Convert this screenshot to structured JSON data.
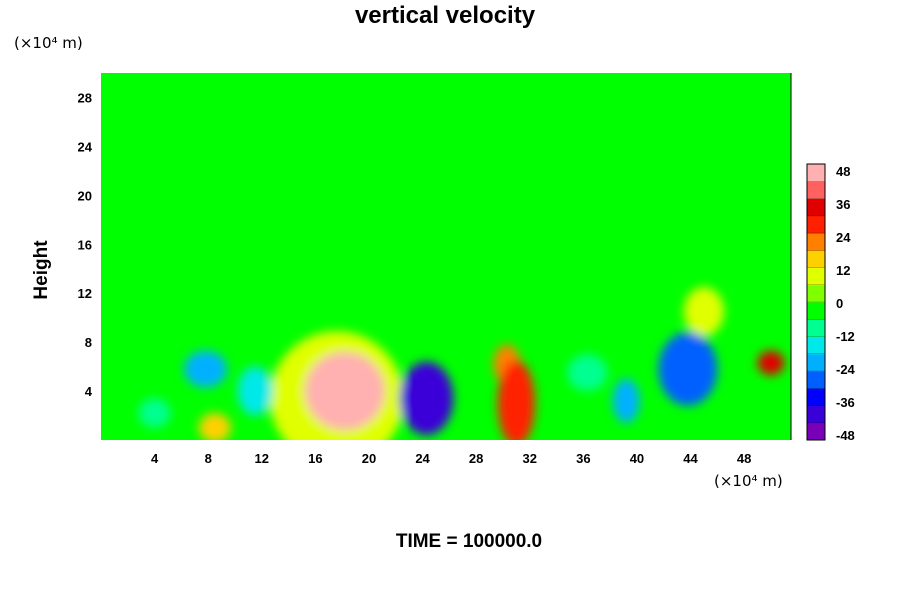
{
  "chart_data": {
    "type": "heatmap",
    "title": "vertical velocity",
    "ylabel": "Height",
    "x_unit_label": "(×10⁴ m)",
    "y_unit_label": "(×10⁴ m)",
    "footer": "TIME = 100000.0",
    "xlim": [
      0,
      51.5
    ],
    "ylim": [
      0,
      30
    ],
    "x_ticks": [
      "4",
      "8",
      "12",
      "16",
      "20",
      "24",
      "28",
      "32",
      "36",
      "40",
      "44",
      "48"
    ],
    "y_ticks": [
      "4",
      "8",
      "12",
      "16",
      "20",
      "24",
      "28"
    ],
    "colorbar": {
      "range": [
        -48,
        48
      ],
      "tick_labels": [
        "48",
        "36",
        "24",
        "12",
        "0",
        "-12",
        "-24",
        "-36",
        "-48"
      ],
      "colors": [
        "#7a00b8",
        "#3a00d8",
        "#0000ff",
        "#0060ff",
        "#00b0ff",
        "#00e8e8",
        "#00ff90",
        "#00ff00",
        "#80ff00",
        "#e0ff00",
        "#ffd000",
        "#ff8000",
        "#ff2000",
        "#e00000",
        "#ff6060",
        "#ffb0b0"
      ]
    },
    "features": [
      {
        "x": 18.2,
        "y": 4.0,
        "value": 46,
        "rx": 3.0,
        "ry": 3.2
      },
      {
        "x": 17.6,
        "y": 3.4,
        "value": 10,
        "rx": 5.0,
        "ry": 5.5
      },
      {
        "x": 24.3,
        "y": 3.4,
        "value": -40,
        "rx": 2.0,
        "ry": 3.0
      },
      {
        "x": 31.0,
        "y": 3.0,
        "value": 28,
        "rx": 1.4,
        "ry": 3.5
      },
      {
        "x": 30.3,
        "y": 6.2,
        "value": 22,
        "rx": 1.0,
        "ry": 1.6
      },
      {
        "x": 43.8,
        "y": 5.8,
        "value": -30,
        "rx": 2.2,
        "ry": 3.0
      },
      {
        "x": 39.2,
        "y": 3.2,
        "value": -24,
        "rx": 1.0,
        "ry": 1.8
      },
      {
        "x": 50.0,
        "y": 6.3,
        "value": 34,
        "rx": 1.0,
        "ry": 1.0
      },
      {
        "x": 7.8,
        "y": 5.8,
        "value": -20,
        "rx": 1.6,
        "ry": 1.5
      },
      {
        "x": 11.5,
        "y": 4.0,
        "value": -16,
        "rx": 1.3,
        "ry": 2.0
      },
      {
        "x": 4.0,
        "y": 2.2,
        "value": -10,
        "rx": 1.2,
        "ry": 1.2
      },
      {
        "x": 8.5,
        "y": 1.0,
        "value": 15,
        "rx": 1.2,
        "ry": 1.2
      },
      {
        "x": 45.0,
        "y": 10.5,
        "value": 12,
        "rx": 1.5,
        "ry": 2.0
      },
      {
        "x": 36.3,
        "y": 5.5,
        "value": -8,
        "rx": 1.5,
        "ry": 1.5
      }
    ]
  }
}
